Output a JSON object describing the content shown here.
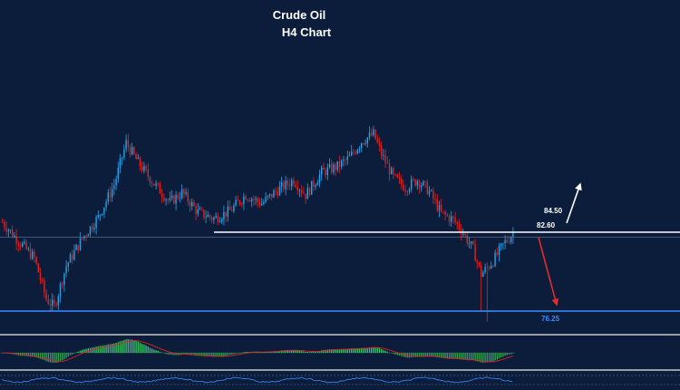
{
  "chart_data": {
    "type": "candlestick",
    "title": "Crude Oil",
    "subtitle": "H4 Chart",
    "levels": [
      {
        "name": "resistance",
        "value": 82.6,
        "label": "82.60",
        "color": "#ffffff"
      },
      {
        "name": "target-up",
        "value": 84.5,
        "label": "84.50",
        "color": "#ffffff"
      },
      {
        "name": "support",
        "value": 76.25,
        "label": "76.25",
        "color": "#3d8bff"
      }
    ],
    "arrows": [
      {
        "name": "up-scenario",
        "from": 82.6,
        "to": 84.5,
        "color": "#ffffff"
      },
      {
        "name": "down-scenario",
        "from": 82.6,
        "to": 76.25,
        "color": "#e52a2a"
      }
    ],
    "colors": {
      "background": "#0b1d3a",
      "bull_candle": "#29a3e8",
      "bear_candle": "#e02424",
      "histogram_positive": "#34c26b",
      "histogram_negative": "#2f9f56",
      "signal_line": "#e02424",
      "grid_line": "#5a6a86",
      "panel_separator": "#c8c8c8"
    },
    "candles": []
  },
  "_note": ""
}
